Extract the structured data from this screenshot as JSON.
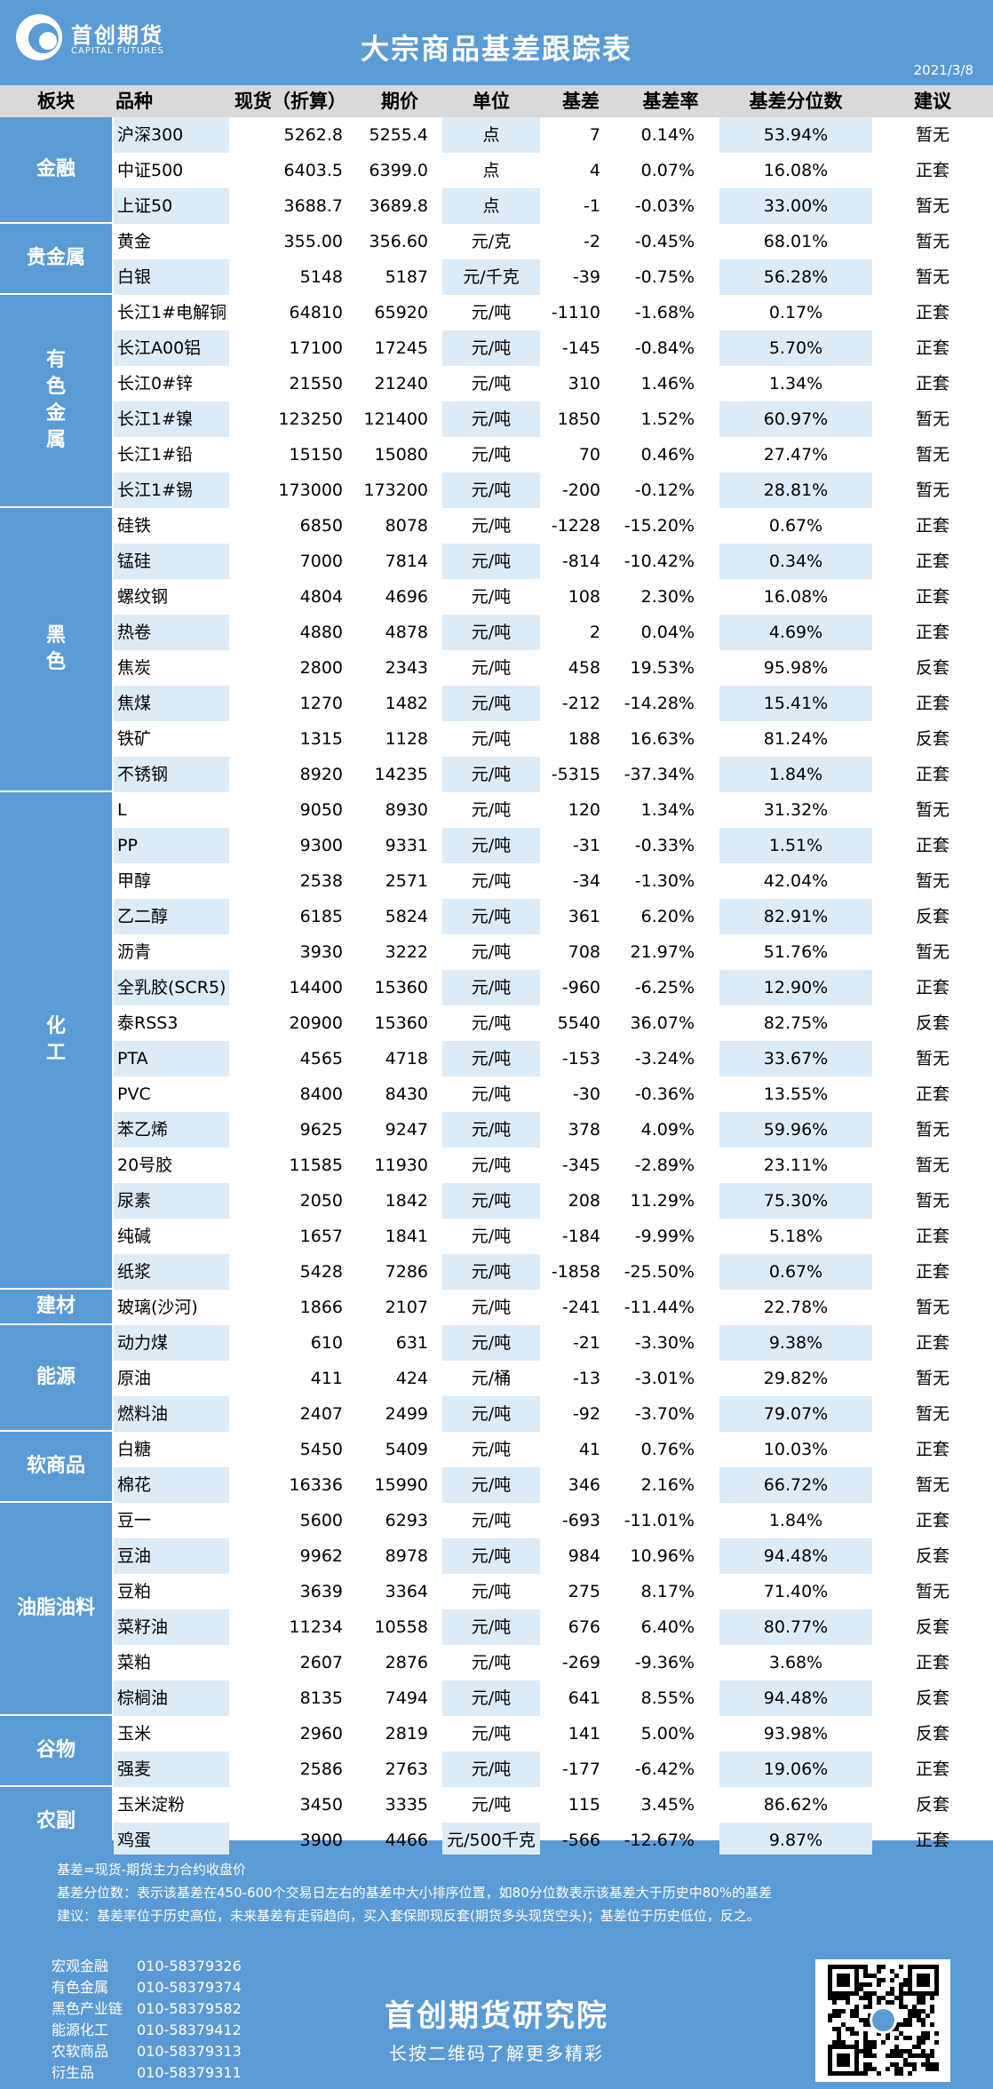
{
  "header": {
    "logo_name": "首创期货",
    "logo_sub": "CAPITAL FUTURES",
    "title": "大宗商品基差跟踪表",
    "date": "2021/3/8"
  },
  "columns": {
    "sector": "板块",
    "name": "品种",
    "spot": "现货（折算）",
    "futures": "期价",
    "unit": "单位",
    "basis": "基差",
    "rate": "基差率",
    "percentile": "基差分位数",
    "advice": "建议"
  },
  "sectors": [
    {
      "name": "金融",
      "start": 0,
      "count": 3,
      "vertical": false
    },
    {
      "name": "贵金属",
      "start": 3,
      "count": 2,
      "vertical": false
    },
    {
      "name": "有色金属",
      "start": 5,
      "count": 6,
      "vertical": true
    },
    {
      "name": "黑色",
      "start": 11,
      "count": 8,
      "vertical": true
    },
    {
      "name": "化工",
      "start": 19,
      "count": 14,
      "vertical": true
    },
    {
      "name": "建材",
      "start": 33,
      "count": 1,
      "vertical": false
    },
    {
      "name": "能源",
      "start": 34,
      "count": 3,
      "vertical": false
    },
    {
      "name": "软商品",
      "start": 37,
      "count": 2,
      "vertical": false
    },
    {
      "name": "油脂油料",
      "start": 39,
      "count": 6,
      "vertical": false
    },
    {
      "name": "谷物",
      "start": 45,
      "count": 2,
      "vertical": false
    },
    {
      "name": "农副",
      "start": 47,
      "count": 2,
      "vertical": false
    }
  ],
  "rows": [
    {
      "name": "沪深300",
      "spot": "5262.8",
      "futures": "5255.4",
      "unit": "点",
      "basis": "7",
      "rate": "0.14%",
      "percentile": "53.94%",
      "advice": "暂无"
    },
    {
      "name": "中证500",
      "spot": "6403.5",
      "futures": "6399.0",
      "unit": "点",
      "basis": "4",
      "rate": "0.07%",
      "percentile": "16.08%",
      "advice": "正套"
    },
    {
      "name": "上证50",
      "spot": "3688.7",
      "futures": "3689.8",
      "unit": "点",
      "basis": "-1",
      "rate": "-0.03%",
      "percentile": "33.00%",
      "advice": "暂无"
    },
    {
      "name": "黄金",
      "spot": "355.00",
      "futures": "356.60",
      "unit": "元/克",
      "basis": "-2",
      "rate": "-0.45%",
      "percentile": "68.01%",
      "advice": "暂无"
    },
    {
      "name": "白银",
      "spot": "5148",
      "futures": "5187",
      "unit": "元/千克",
      "basis": "-39",
      "rate": "-0.75%",
      "percentile": "56.28%",
      "advice": "暂无"
    },
    {
      "name": "长江1#电解铜",
      "spot": "64810",
      "futures": "65920",
      "unit": "元/吨",
      "basis": "-1110",
      "rate": "-1.68%",
      "percentile": "0.17%",
      "advice": "正套"
    },
    {
      "name": "长江A00铝",
      "spot": "17100",
      "futures": "17245",
      "unit": "元/吨",
      "basis": "-145",
      "rate": "-0.84%",
      "percentile": "5.70%",
      "advice": "正套"
    },
    {
      "name": "长江0#锌",
      "spot": "21550",
      "futures": "21240",
      "unit": "元/吨",
      "basis": "310",
      "rate": "1.46%",
      "percentile": "1.34%",
      "advice": "正套"
    },
    {
      "name": "长江1#镍",
      "spot": "123250",
      "futures": "121400",
      "unit": "元/吨",
      "basis": "1850",
      "rate": "1.52%",
      "percentile": "60.97%",
      "advice": "暂无"
    },
    {
      "name": "长江1#铅",
      "spot": "15150",
      "futures": "15080",
      "unit": "元/吨",
      "basis": "70",
      "rate": "0.46%",
      "percentile": "27.47%",
      "advice": "暂无"
    },
    {
      "name": "长江1#锡",
      "spot": "173000",
      "futures": "173200",
      "unit": "元/吨",
      "basis": "-200",
      "rate": "-0.12%",
      "percentile": "28.81%",
      "advice": "暂无"
    },
    {
      "name": "硅铁",
      "spot": "6850",
      "futures": "8078",
      "unit": "元/吨",
      "basis": "-1228",
      "rate": "-15.20%",
      "percentile": "0.67%",
      "advice": "正套"
    },
    {
      "name": "锰硅",
      "spot": "7000",
      "futures": "7814",
      "unit": "元/吨",
      "basis": "-814",
      "rate": "-10.42%",
      "percentile": "0.34%",
      "advice": "正套"
    },
    {
      "name": "螺纹钢",
      "spot": "4804",
      "futures": "4696",
      "unit": "元/吨",
      "basis": "108",
      "rate": "2.30%",
      "percentile": "16.08%",
      "advice": "正套"
    },
    {
      "name": "热卷",
      "spot": "4880",
      "futures": "4878",
      "unit": "元/吨",
      "basis": "2",
      "rate": "0.04%",
      "percentile": "4.69%",
      "advice": "正套"
    },
    {
      "name": "焦炭",
      "spot": "2800",
      "futures": "2343",
      "unit": "元/吨",
      "basis": "458",
      "rate": "19.53%",
      "percentile": "95.98%",
      "advice": "反套"
    },
    {
      "name": "焦煤",
      "spot": "1270",
      "futures": "1482",
      "unit": "元/吨",
      "basis": "-212",
      "rate": "-14.28%",
      "percentile": "15.41%",
      "advice": "正套"
    },
    {
      "name": "铁矿",
      "spot": "1315",
      "futures": "1128",
      "unit": "元/吨",
      "basis": "188",
      "rate": "16.63%",
      "percentile": "81.24%",
      "advice": "反套"
    },
    {
      "name": "不锈钢",
      "spot": "8920",
      "futures": "14235",
      "unit": "元/吨",
      "basis": "-5315",
      "rate": "-37.34%",
      "percentile": "1.84%",
      "advice": "正套"
    },
    {
      "name": "L",
      "spot": "9050",
      "futures": "8930",
      "unit": "元/吨",
      "basis": "120",
      "rate": "1.34%",
      "percentile": "31.32%",
      "advice": "暂无"
    },
    {
      "name": "PP",
      "spot": "9300",
      "futures": "9331",
      "unit": "元/吨",
      "basis": "-31",
      "rate": "-0.33%",
      "percentile": "1.51%",
      "advice": "正套"
    },
    {
      "name": "甲醇",
      "spot": "2538",
      "futures": "2571",
      "unit": "元/吨",
      "basis": "-34",
      "rate": "-1.30%",
      "percentile": "42.04%",
      "advice": "暂无"
    },
    {
      "name": "乙二醇",
      "spot": "6185",
      "futures": "5824",
      "unit": "元/吨",
      "basis": "361",
      "rate": "6.20%",
      "percentile": "82.91%",
      "advice": "反套"
    },
    {
      "name": "沥青",
      "spot": "3930",
      "futures": "3222",
      "unit": "元/吨",
      "basis": "708",
      "rate": "21.97%",
      "percentile": "51.76%",
      "advice": "暂无"
    },
    {
      "name": "全乳胶(SCR5)",
      "spot": "14400",
      "futures": "15360",
      "unit": "元/吨",
      "basis": "-960",
      "rate": "-6.25%",
      "percentile": "12.90%",
      "advice": "正套"
    },
    {
      "name": "泰RSS3",
      "spot": "20900",
      "futures": "15360",
      "unit": "元/吨",
      "basis": "5540",
      "rate": "36.07%",
      "percentile": "82.75%",
      "advice": "反套"
    },
    {
      "name": "PTA",
      "spot": "4565",
      "futures": "4718",
      "unit": "元/吨",
      "basis": "-153",
      "rate": "-3.24%",
      "percentile": "33.67%",
      "advice": "暂无"
    },
    {
      "name": "PVC",
      "spot": "8400",
      "futures": "8430",
      "unit": "元/吨",
      "basis": "-30",
      "rate": "-0.36%",
      "percentile": "13.55%",
      "advice": "正套"
    },
    {
      "name": "苯乙烯",
      "spot": "9625",
      "futures": "9247",
      "unit": "元/吨",
      "basis": "378",
      "rate": "4.09%",
      "percentile": "59.96%",
      "advice": "暂无"
    },
    {
      "name": "20号胶",
      "spot": "11585",
      "futures": "11930",
      "unit": "元/吨",
      "basis": "-345",
      "rate": "-2.89%",
      "percentile": "23.11%",
      "advice": "暂无"
    },
    {
      "name": "尿素",
      "spot": "2050",
      "futures": "1842",
      "unit": "元/吨",
      "basis": "208",
      "rate": "11.29%",
      "percentile": "75.30%",
      "advice": "暂无"
    },
    {
      "name": "纯碱",
      "spot": "1657",
      "futures": "1841",
      "unit": "元/吨",
      "basis": "-184",
      "rate": "-9.99%",
      "percentile": "5.18%",
      "advice": "正套"
    },
    {
      "name": "纸浆",
      "spot": "5428",
      "futures": "7286",
      "unit": "元/吨",
      "basis": "-1858",
      "rate": "-25.50%",
      "percentile": "0.67%",
      "advice": "正套"
    },
    {
      "name": "玻璃(沙河)",
      "spot": "1866",
      "futures": "2107",
      "unit": "元/吨",
      "basis": "-241",
      "rate": "-11.44%",
      "percentile": "22.78%",
      "advice": "暂无"
    },
    {
      "name": "动力煤",
      "spot": "610",
      "futures": "631",
      "unit": "元/吨",
      "basis": "-21",
      "rate": "-3.30%",
      "percentile": "9.38%",
      "advice": "正套"
    },
    {
      "name": "原油",
      "spot": "411",
      "futures": "424",
      "unit": "元/桶",
      "basis": "-13",
      "rate": "-3.01%",
      "percentile": "29.82%",
      "advice": "暂无"
    },
    {
      "name": "燃料油",
      "spot": "2407",
      "futures": "2499",
      "unit": "元/吨",
      "basis": "-92",
      "rate": "-3.70%",
      "percentile": "79.07%",
      "advice": "暂无"
    },
    {
      "name": "白糖",
      "spot": "5450",
      "futures": "5409",
      "unit": "元/吨",
      "basis": "41",
      "rate": "0.76%",
      "percentile": "10.03%",
      "advice": "正套"
    },
    {
      "name": "棉花",
      "spot": "16336",
      "futures": "15990",
      "unit": "元/吨",
      "basis": "346",
      "rate": "2.16%",
      "percentile": "66.72%",
      "advice": "暂无"
    },
    {
      "name": "豆一",
      "spot": "5600",
      "futures": "6293",
      "unit": "元/吨",
      "basis": "-693",
      "rate": "-11.01%",
      "percentile": "1.84%",
      "advice": "正套"
    },
    {
      "name": "豆油",
      "spot": "9962",
      "futures": "8978",
      "unit": "元/吨",
      "basis": "984",
      "rate": "10.96%",
      "percentile": "94.48%",
      "advice": "反套"
    },
    {
      "name": "豆粕",
      "spot": "3639",
      "futures": "3364",
      "unit": "元/吨",
      "basis": "275",
      "rate": "8.17%",
      "percentile": "71.40%",
      "advice": "暂无"
    },
    {
      "name": "菜籽油",
      "spot": "11234",
      "futures": "10558",
      "unit": "元/吨",
      "basis": "676",
      "rate": "6.40%",
      "percentile": "80.77%",
      "advice": "反套"
    },
    {
      "name": "菜粕",
      "spot": "2607",
      "futures": "2876",
      "unit": "元/吨",
      "basis": "-269",
      "rate": "-9.36%",
      "percentile": "3.68%",
      "advice": "正套"
    },
    {
      "name": "棕榈油",
      "spot": "8135",
      "futures": "7494",
      "unit": "元/吨",
      "basis": "641",
      "rate": "8.55%",
      "percentile": "94.48%",
      "advice": "反套"
    },
    {
      "name": "玉米",
      "spot": "2960",
      "futures": "2819",
      "unit": "元/吨",
      "basis": "141",
      "rate": "5.00%",
      "percentile": "93.98%",
      "advice": "反套"
    },
    {
      "name": "强麦",
      "spot": "2586",
      "futures": "2763",
      "unit": "元/吨",
      "basis": "-177",
      "rate": "-6.42%",
      "percentile": "19.06%",
      "advice": "正套"
    },
    {
      "name": "玉米淀粉",
      "spot": "3450",
      "futures": "3335",
      "unit": "元/吨",
      "basis": "115",
      "rate": "3.45%",
      "percentile": "86.62%",
      "advice": "反套"
    },
    {
      "name": "鸡蛋",
      "spot": "3900",
      "futures": "4466",
      "unit": "元/500千克",
      "basis": "-566",
      "rate": "-12.67%",
      "percentile": "9.87%",
      "advice": "正套"
    }
  ],
  "notes": [
    "基差=现货-期货主力合约收盘价",
    "基差分位数：表示该基差在450-600个交易日左右的基差中大小排序位置，如80分位数表示该基差大于历史中80%的基差",
    "建议：基差率位于历史高位，未来基差有走弱趋向，买入套保即现反套(期货多头现货空头)；基差位于历史低位，反之。"
  ],
  "footer": {
    "contacts": [
      {
        "label": "宏观金融",
        "phone": "010-58379326"
      },
      {
        "label": "有色金属",
        "phone": "010-58379374"
      },
      {
        "label": "黑色产业链",
        "phone": "010-58379582"
      },
      {
        "label": "能源化工",
        "phone": "010-58379412"
      },
      {
        "label": "农软商品",
        "phone": "010-58379313"
      },
      {
        "label": "衍生品",
        "phone": "010-58379311"
      }
    ],
    "institute": "首创期货研究院",
    "slogan": "长按二维码了解更多精彩"
  },
  "colors": {
    "brand_blue": "#5b9bd5",
    "highlight": "#ddebf7",
    "header_gray": "#d9d9d9"
  }
}
